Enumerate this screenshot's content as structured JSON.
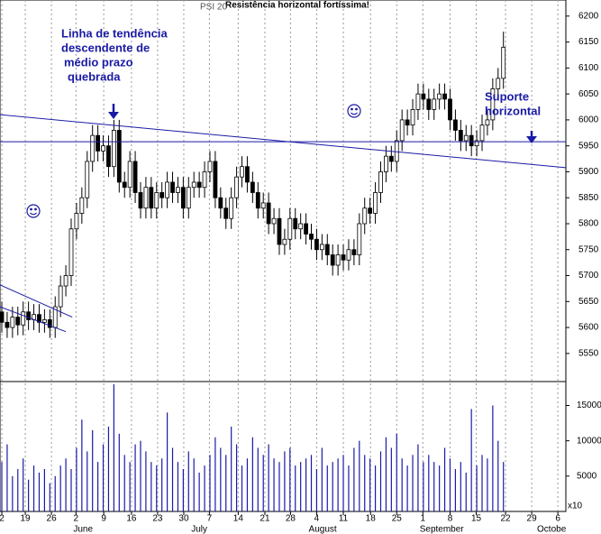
{
  "chart_data": {
    "type": "candlestick",
    "title": "Resistência horizontal fortíssima!",
    "subtitle": "PSI 20",
    "x": [
      0,
      1,
      2,
      3,
      4,
      5,
      6,
      7,
      8,
      9,
      10,
      11,
      12,
      13,
      14,
      15,
      16,
      17,
      18,
      19,
      20,
      21,
      22,
      23,
      24,
      25,
      26,
      27,
      28,
      29,
      30,
      31,
      32,
      33,
      34,
      35,
      36,
      37,
      38,
      39,
      40,
      41,
      42,
      43,
      44,
      45,
      46,
      47,
      48,
      49,
      50,
      51,
      52,
      53,
      54,
      55,
      56,
      57,
      58,
      59,
      60,
      61,
      62,
      63,
      64,
      65,
      66,
      67,
      68,
      69,
      70,
      71,
      72,
      73,
      74,
      75,
      76,
      77,
      78,
      79,
      80,
      81,
      82,
      83,
      84,
      85,
      86,
      87,
      88,
      89,
      90,
      91,
      92,
      93,
      94
    ],
    "open": [
      5630,
      5610,
      5600,
      5620,
      5605,
      5630,
      5615,
      5625,
      5610,
      5615,
      5600,
      5640,
      5680,
      5700,
      5790,
      5820,
      5850,
      5920,
      5970,
      5940,
      5950,
      5910,
      5980,
      5880,
      5870,
      5920,
      5860,
      5830,
      5870,
      5830,
      5860,
      5850,
      5880,
      5860,
      5870,
      5830,
      5870,
      5880,
      5870,
      5900,
      5920,
      5850,
      5830,
      5810,
      5850,
      5890,
      5910,
      5880,
      5860,
      5830,
      5840,
      5800,
      5810,
      5760,
      5770,
      5810,
      5790,
      5800,
      5780,
      5770,
      5750,
      5760,
      5740,
      5720,
      5740,
      5730,
      5750,
      5740,
      5800,
      5830,
      5820,
      5860,
      5900,
      5930,
      5920,
      5960,
      6000,
      5990,
      6020,
      6050,
      6040,
      6020,
      6040,
      6050,
      6040,
      6000,
      5980,
      5960,
      5970,
      5950,
      5960,
      5990,
      6000,
      6060,
      6080
    ],
    "high": [
      5650,
      5630,
      5640,
      5640,
      5650,
      5650,
      5645,
      5645,
      5635,
      5635,
      5660,
      5700,
      5720,
      5810,
      5840,
      5870,
      5940,
      5990,
      5990,
      5970,
      5970,
      6000,
      6000,
      5900,
      5940,
      5940,
      5880,
      5890,
      5890,
      5880,
      5880,
      5900,
      5900,
      5890,
      5890,
      5890,
      5900,
      5900,
      5920,
      5940,
      5940,
      5870,
      5850,
      5870,
      5910,
      5930,
      5930,
      5900,
      5880,
      5860,
      5860,
      5830,
      5830,
      5790,
      5830,
      5830,
      5820,
      5820,
      5800,
      5790,
      5780,
      5780,
      5760,
      5760,
      5760,
      5770,
      5770,
      5820,
      5850,
      5850,
      5880,
      5920,
      5950,
      5950,
      5980,
      6020,
      6020,
      6040,
      6070,
      6070,
      6060,
      6060,
      6070,
      6070,
      6060,
      6020,
      6000,
      5990,
      5990,
      5980,
      6010,
      6020,
      6080,
      6100,
      6170
    ],
    "low": [
      5590,
      5580,
      5580,
      5585,
      5585,
      5595,
      5595,
      5590,
      5590,
      5580,
      5580,
      5620,
      5660,
      5680,
      5770,
      5800,
      5830,
      5900,
      5920,
      5920,
      5890,
      5890,
      5860,
      5850,
      5850,
      5840,
      5810,
      5810,
      5810,
      5810,
      5830,
      5830,
      5840,
      5840,
      5810,
      5810,
      5850,
      5850,
      5850,
      5880,
      5830,
      5810,
      5790,
      5790,
      5830,
      5870,
      5860,
      5840,
      5810,
      5810,
      5780,
      5780,
      5740,
      5740,
      5750,
      5770,
      5770,
      5760,
      5750,
      5730,
      5730,
      5720,
      5700,
      5700,
      5710,
      5710,
      5720,
      5720,
      5780,
      5800,
      5800,
      5840,
      5880,
      5900,
      5900,
      5940,
      5970,
      5970,
      6000,
      6020,
      6000,
      6000,
      6020,
      6020,
      5980,
      5960,
      5940,
      5940,
      5930,
      5930,
      5940,
      5970,
      5980,
      6040,
      6060
    ],
    "close": [
      5610,
      5600,
      5620,
      5605,
      5630,
      5615,
      5625,
      5610,
      5615,
      5600,
      5640,
      5680,
      5700,
      5790,
      5820,
      5850,
      5920,
      5970,
      5940,
      5950,
      5910,
      5980,
      5880,
      5870,
      5920,
      5860,
      5830,
      5870,
      5830,
      5860,
      5850,
      5880,
      5860,
      5870,
      5830,
      5870,
      5880,
      5870,
      5900,
      5920,
      5850,
      5830,
      5810,
      5850,
      5890,
      5910,
      5880,
      5860,
      5830,
      5840,
      5800,
      5810,
      5760,
      5770,
      5810,
      5790,
      5800,
      5780,
      5770,
      5750,
      5760,
      5740,
      5720,
      5740,
      5730,
      5750,
      5740,
      5800,
      5830,
      5820,
      5860,
      5900,
      5930,
      5920,
      5960,
      6000,
      5990,
      6020,
      6050,
      6040,
      6020,
      6040,
      6050,
      6040,
      6000,
      5980,
      5960,
      5970,
      5950,
      5960,
      5990,
      6000,
      6060,
      6080,
      6140
    ],
    "volume": [
      7000,
      9500,
      5000,
      6000,
      7500,
      4500,
      6500,
      5500,
      6000,
      4000,
      5000,
      6500,
      7500,
      6000,
      9000,
      13000,
      8500,
      11500,
      7000,
      9500,
      12000,
      18000,
      11000,
      8000,
      7000,
      9500,
      10000,
      8500,
      7000,
      6500,
      7500,
      14000,
      9000,
      7000,
      6000,
      8500,
      7500,
      5500,
      6500,
      8000,
      10500,
      9000,
      8000,
      12000,
      9500,
      6500,
      7500,
      10500,
      9000,
      8000,
      9500,
      7500,
      7000,
      8500,
      9000,
      6500,
      7000,
      7500,
      8000,
      6000,
      9000,
      6500,
      7000,
      7500,
      8000,
      6500,
      9000,
      10000,
      8000,
      7500,
      6500,
      8500,
      10500,
      9000,
      11000,
      7500,
      6500,
      8000,
      9500,
      7000,
      8000,
      7000,
      6500,
      9000,
      7500,
      6000,
      7000,
      5500,
      14500,
      6500,
      8000,
      7500,
      15000,
      10000,
      7000
    ],
    "volume_color": "#1a1aa6",
    "xlim": [
      -0.34,
      105.7
    ],
    "xticks": [
      {
        "value": 0,
        "label": "2"
      },
      {
        "value": 4.4,
        "label": "19"
      },
      {
        "value": 9.3,
        "label": "26"
      },
      {
        "value": 13.9,
        "label": "2"
      },
      {
        "value": 19.1,
        "label": "9"
      },
      {
        "value": 24.3,
        "label": "16"
      },
      {
        "value": 29.2,
        "label": "23"
      },
      {
        "value": 34.1,
        "label": "30"
      },
      {
        "value": 38.9,
        "label": "7"
      },
      {
        "value": 44.3,
        "label": "14"
      },
      {
        "value": 49.3,
        "label": "21"
      },
      {
        "value": 54.1,
        "label": "28"
      },
      {
        "value": 59,
        "label": "4"
      },
      {
        "value": 64,
        "label": "11"
      },
      {
        "value": 69.1,
        "label": "18"
      },
      {
        "value": 74,
        "label": "25"
      },
      {
        "value": 78.9,
        "label": "1"
      },
      {
        "value": 84,
        "label": "8"
      },
      {
        "value": 88.9,
        "label": "15"
      },
      {
        "value": 94.4,
        "label": "22"
      },
      {
        "value": 99.3,
        "label": "29"
      },
      {
        "value": 104.2,
        "label": "6"
      }
    ],
    "months": [
      {
        "value": 13.4,
        "label": "June"
      },
      {
        "value": 35.5,
        "label": "July"
      },
      {
        "value": 57.5,
        "label": "August"
      },
      {
        "value": 78.3,
        "label": "September"
      },
      {
        "value": 100.3,
        "label": "Octobe"
      }
    ],
    "ylim": [
      5500,
      6231
    ],
    "yticks": [
      5550,
      5600,
      5650,
      5700,
      5750,
      5800,
      5850,
      5900,
      5950,
      6000,
      6050,
      6100,
      6150,
      6200
    ],
    "vlim": [
      0,
      18000
    ],
    "vticks": [
      5000,
      10000,
      15000
    ],
    "volume_unit": "x10",
    "lines": [
      {
        "x": [
          -0.34,
          105.7
        ],
        "y": [
          5958,
          5958
        ]
      },
      {
        "x": [
          -0.34,
          105.7
        ],
        "y": [
          6010,
          5908
        ]
      },
      {
        "x": [
          -0.34,
          13.2
        ],
        "y": [
          5682,
          5620
        ]
      },
      {
        "x": [
          -0.34,
          12.0
        ],
        "y": [
          5640,
          5592
        ]
      }
    ],
    "line_color": "#1a1aa6",
    "annotations": [
      {
        "lines": [
          "Linha de tendência",
          "descendente de",
          "médio prazo",
          "quebrada"
        ]
      },
      {
        "lines": [
          "Suporte",
          "horizontal"
        ]
      }
    ]
  }
}
